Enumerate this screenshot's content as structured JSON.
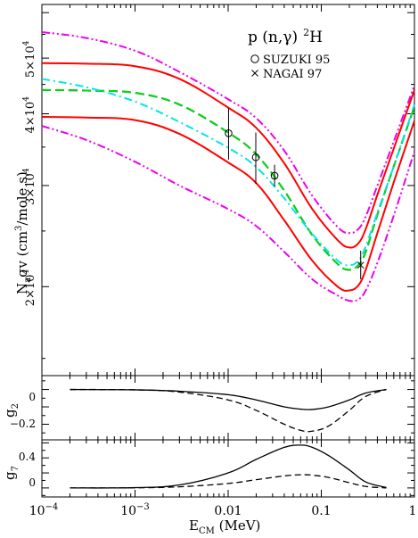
{
  "figure": {
    "panel_main": {
      "title_reaction": "p (n,γ) ²H",
      "title_parts": {
        "prefix": "p (n,",
        "gamma": "γ",
        "close": ")",
        "sup": "2",
        "elem": "H"
      },
      "legend": [
        {
          "marker": "circle",
          "label": "SUZUKI 95"
        },
        {
          "marker": "cross",
          "label": "NAGAI 97"
        }
      ],
      "ylabel": {
        "na": "N",
        "a": "a",
        "sigma": "σv (cm",
        "cube": "3",
        "rest": "/mole s)"
      },
      "ytick_labels": [
        {
          "mant": "2×10",
          "exp": "4",
          "value": 20000
        },
        {
          "mant": "3×10",
          "exp": "4",
          "value": 30000
        },
        {
          "mant": "4×10",
          "exp": "4",
          "value": 40000
        },
        {
          "mant": "5×10",
          "exp": "4",
          "value": 50000
        }
      ]
    },
    "panel_g2": {
      "ylabel": "g",
      "ylabel_sub": "2",
      "ytick_labels": [
        "0",
        "−0.2"
      ]
    },
    "panel_g7": {
      "ylabel": "g",
      "ylabel_sub": "7",
      "ytick_labels": [
        "0.4",
        "0"
      ]
    },
    "xaxis": {
      "label": "E",
      "label_sub": "CM",
      "label_unit": " (MeV)",
      "tick_labels": [
        {
          "base": "10",
          "exp": "−4"
        },
        {
          "base": "10",
          "exp": "−3"
        },
        {
          "base": "0.01",
          "exp": ""
        },
        {
          "base": "0.1",
          "exp": ""
        },
        {
          "base": "1",
          "exp": ""
        }
      ]
    }
  },
  "chart_data": [
    {
      "type": "line",
      "panel": "main",
      "xscale": "log",
      "yscale": "log",
      "xlim": [
        0.0001,
        1
      ],
      "ylim": [
        14000,
        62000
      ],
      "series": [
        {
          "style": "red solid",
          "color": "#ff0000",
          "x": [
            0.0001,
            0.0003,
            0.001,
            0.003,
            0.01,
            0.02,
            0.04,
            0.08,
            0.15,
            0.2,
            0.25,
            0.3,
            0.4,
            0.6,
            1
          ],
          "y": [
            49000,
            48900,
            48400,
            46000,
            41000,
            37800,
            32800,
            27300,
            24100,
            23400,
            23800,
            25200,
            28900,
            34800,
            44000
          ]
        },
        {
          "style": "red solid",
          "color": "#ff0000",
          "x": [
            0.0001,
            0.0003,
            0.001,
            0.003,
            0.01,
            0.02,
            0.04,
            0.08,
            0.15,
            0.2,
            0.25,
            0.3,
            0.4,
            0.6,
            1
          ],
          "y": [
            39500,
            39400,
            39000,
            36900,
            32900,
            30300,
            26100,
            22200,
            20000,
            19700,
            20100,
            21400,
            24800,
            30400,
            38900
          ]
        },
        {
          "style": "blue dashed",
          "color": "#0000cc",
          "x": [
            0.0001,
            0.0003,
            0.001,
            0.003,
            0.01,
            0.02,
            0.04,
            0.08,
            0.15,
            0.2,
            0.25,
            0.3,
            0.4,
            0.6,
            1
          ],
          "y": [
            44000,
            43900,
            43500,
            41500,
            37100,
            34000,
            29400,
            24600,
            21900,
            21400,
            21800,
            23000,
            26700,
            32400,
            41200
          ]
        },
        {
          "style": "green dashed",
          "color": "#00dd00",
          "x": [
            0.0001,
            0.0003,
            0.001,
            0.003,
            0.01,
            0.02,
            0.04,
            0.08,
            0.15,
            0.2,
            0.25,
            0.3,
            0.4,
            0.6,
            1
          ],
          "y": [
            44000,
            43900,
            43500,
            41500,
            37100,
            34000,
            29400,
            24600,
            21900,
            21400,
            21800,
            23000,
            26700,
            32400,
            41200
          ]
        },
        {
          "style": "cyan dash-dot",
          "color": "#00e5e5",
          "x": [
            0.0001,
            0.0003,
            0.001,
            0.003,
            0.01,
            0.02,
            0.04,
            0.08,
            0.15,
            0.2,
            0.25,
            0.3,
            0.4,
            0.6,
            1
          ],
          "y": [
            46000,
            44500,
            42000,
            38700,
            34900,
            32300,
            28500,
            24700,
            22200,
            21800,
            22200,
            23500,
            26900,
            32400,
            41500
          ]
        },
        {
          "style": "magenta dash-dot-dot",
          "color": "#ee00ee",
          "x": [
            0.0001,
            0.0003,
            0.001,
            0.003,
            0.01,
            0.02,
            0.04,
            0.08,
            0.15,
            0.2,
            0.25,
            0.3,
            0.4,
            0.6,
            1
          ],
          "y": [
            55500,
            54200,
            51500,
            47300,
            42400,
            39300,
            34500,
            28800,
            25400,
            24800,
            25200,
            26500,
            30000,
            35800,
            44800
          ]
        },
        {
          "style": "magenta dash-dot-dot",
          "color": "#ee00ee",
          "x": [
            0.0001,
            0.0003,
            0.001,
            0.003,
            0.01,
            0.02,
            0.04,
            0.08,
            0.15,
            0.2,
            0.25,
            0.3,
            0.4,
            0.6,
            1
          ],
          "y": [
            38100,
            36000,
            33000,
            30000,
            27300,
            25500,
            23000,
            20600,
            19300,
            18900,
            19000,
            19700,
            22000,
            26600,
            34400
          ]
        }
      ],
      "points": [
        {
          "name": "SUZUKI 95",
          "marker": "circle",
          "x": [
            0.0101,
            0.0198,
            0.0315
          ],
          "y": [
            37000,
            33600,
            31200
          ],
          "yerr_lo": [
            33300,
            30200,
            29900
          ],
          "yerr_hi": [
            40900,
            37100,
            32600
          ]
        },
        {
          "name": "NAGAI 97",
          "marker": "cross",
          "x": [
            0.265
          ],
          "y": [
            21800
          ],
          "yerr_lo": [
            20600
          ],
          "yerr_hi": [
            23100
          ]
        }
      ]
    },
    {
      "type": "line",
      "panel": "g2",
      "xscale": "log",
      "xlim": [
        0.0001,
        1
      ],
      "ylim": [
        -0.29,
        0.08
      ],
      "series": [
        {
          "style": "solid",
          "color": "#000000",
          "x": [
            0.0002,
            0.001,
            0.003,
            0.01,
            0.02,
            0.04,
            0.06,
            0.08,
            0.12,
            0.2,
            0.3,
            0.5
          ],
          "y": [
            0,
            -0.002,
            -0.01,
            -0.03,
            -0.06,
            -0.1,
            -0.113,
            -0.115,
            -0.1,
            -0.06,
            -0.02,
            0
          ]
        },
        {
          "style": "dashed",
          "color": "#000000",
          "x": [
            0.0002,
            0.001,
            0.003,
            0.01,
            0.02,
            0.04,
            0.06,
            0.08,
            0.12,
            0.2,
            0.3,
            0.5
          ],
          "y": [
            0,
            -0.002,
            -0.015,
            -0.06,
            -0.12,
            -0.2,
            -0.235,
            -0.24,
            -0.21,
            -0.12,
            -0.04,
            0
          ]
        }
      ]
    },
    {
      "type": "line",
      "panel": "g7",
      "xscale": "log",
      "xlim": [
        0.0001,
        1
      ],
      "ylim": [
        -0.12,
        0.64
      ],
      "series": [
        {
          "style": "solid",
          "color": "#000000",
          "x": [
            0.0002,
            0.001,
            0.003,
            0.01,
            0.02,
            0.04,
            0.06,
            0.08,
            0.12,
            0.2,
            0.3,
            0.5
          ],
          "y": [
            0,
            0.004,
            0.04,
            0.2,
            0.38,
            0.54,
            0.57,
            0.54,
            0.43,
            0.24,
            0.08,
            0.005
          ]
        },
        {
          "style": "dashed",
          "color": "#000000",
          "x": [
            0.0002,
            0.001,
            0.003,
            0.01,
            0.02,
            0.04,
            0.06,
            0.08,
            0.12,
            0.2,
            0.3,
            0.5
          ],
          "y": [
            0,
            0.002,
            0.015,
            0.06,
            0.11,
            0.16,
            0.175,
            0.17,
            0.14,
            0.07,
            0.02,
            0
          ]
        }
      ]
    }
  ]
}
